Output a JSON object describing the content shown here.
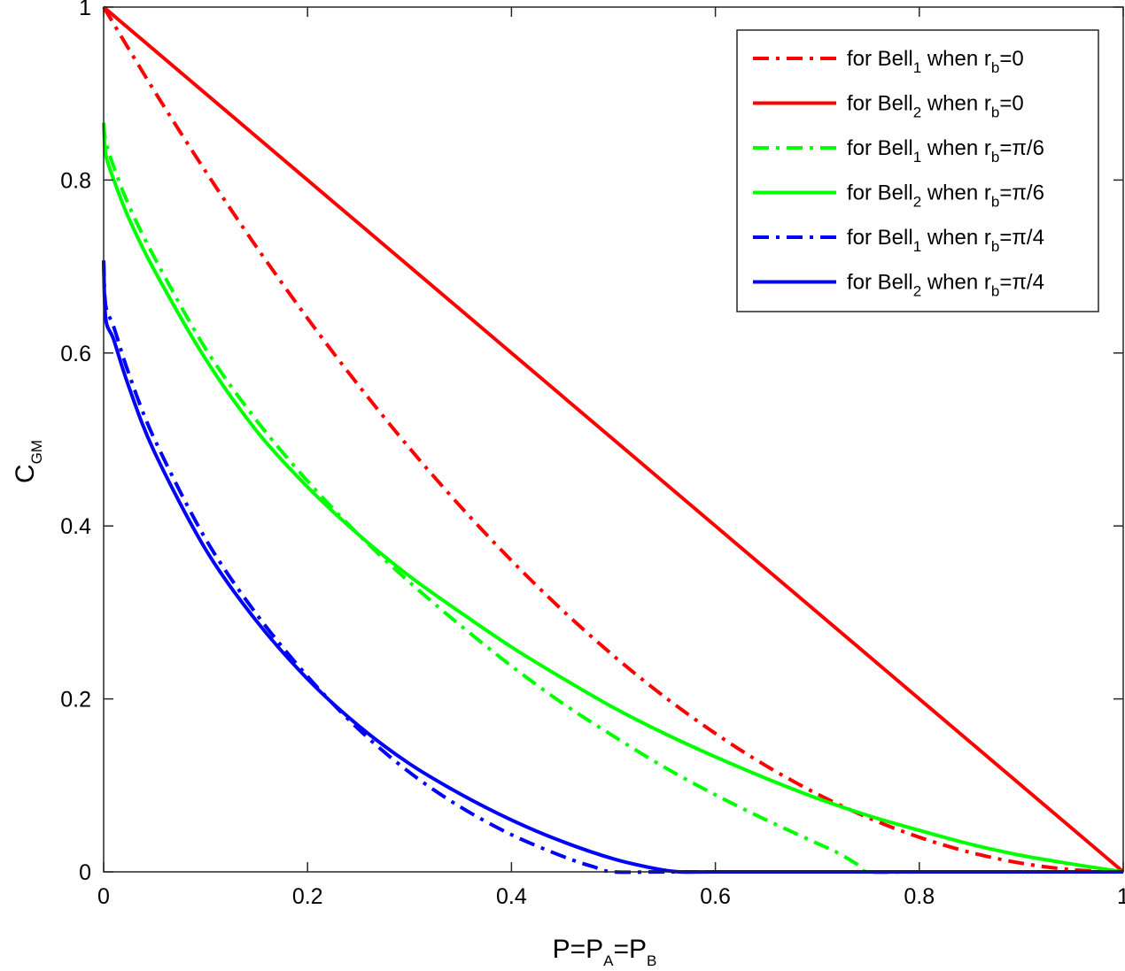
{
  "chart_data": {
    "type": "line",
    "xlabel": "P=P_A=P_B",
    "xlabel_parts": {
      "main": "P=P",
      "sub1": "A",
      "mid": "=P",
      "sub2": "B"
    },
    "ylabel": "C_GM",
    "ylabel_parts": {
      "main": "C",
      "sub": "GM"
    },
    "xlim": [
      0,
      1
    ],
    "ylim": [
      0,
      1
    ],
    "xticks": [
      0,
      0.2,
      0.4,
      0.6,
      0.8,
      1
    ],
    "xtick_labels": [
      "0",
      "0.2",
      "0.4",
      "0.6",
      "0.8",
      "1"
    ],
    "yticks": [
      0,
      0.2,
      0.4,
      0.6,
      0.8,
      1
    ],
    "ytick_labels": [
      "0",
      "0.2",
      "0.4",
      "0.6",
      "0.8",
      "1"
    ],
    "grid": false,
    "legend_position": "top-right",
    "series": [
      {
        "name": "for Bell_1 when r_b=0",
        "label": {
          "pre": "for Bell",
          "sub1": "1",
          "mid": " when r",
          "sub2": "b",
          "post": "=0"
        },
        "color": "#ff0000",
        "style": "dashdot",
        "x": [
          0,
          0.05,
          0.1,
          0.15,
          0.2,
          0.25,
          0.3,
          0.35,
          0.4,
          0.45,
          0.5,
          0.55,
          0.6,
          0.65,
          0.7,
          0.75,
          0.8,
          0.85,
          0.9,
          0.95,
          1.0
        ],
        "y": [
          1,
          0.9025,
          0.81,
          0.7225,
          0.64,
          0.5625,
          0.49,
          0.4225,
          0.36,
          0.3025,
          0.25,
          0.2025,
          0.16,
          0.1225,
          0.09,
          0.0625,
          0.04,
          0.0225,
          0.01,
          0.0025,
          0
        ]
      },
      {
        "name": "for Bell_2 when r_b=0",
        "label": {
          "pre": "for Bell",
          "sub1": "2",
          "mid": " when r",
          "sub2": "b",
          "post": "=0"
        },
        "color": "#ff0000",
        "style": "solid",
        "x": [
          0,
          1
        ],
        "y": [
          1,
          0
        ]
      },
      {
        "name": "for Bell_1 when r_b=π/6",
        "label": {
          "pre": "for Bell",
          "sub1": "1",
          "mid": " when r",
          "sub2": "b",
          "post": "=π/6"
        },
        "color": "#00ff00",
        "style": "dashdot",
        "x": [
          0,
          0.002,
          0.01,
          0.025,
          0.05,
          0.1,
          0.15,
          0.2,
          0.25,
          0.3,
          0.35,
          0.4,
          0.45,
          0.5,
          0.55,
          0.6,
          0.65,
          0.7,
          0.72,
          0.74,
          0.75,
          0.8,
          0.9,
          1.0
        ],
        "y": [
          0.866,
          0.845,
          0.815,
          0.77,
          0.71,
          0.605,
          0.522,
          0.452,
          0.39,
          0.335,
          0.285,
          0.238,
          0.195,
          0.157,
          0.121,
          0.089,
          0.06,
          0.033,
          0.022,
          0.008,
          0,
          0,
          0,
          0
        ]
      },
      {
        "name": "for Bell_2 when r_b=π/6",
        "label": {
          "pre": "for Bell",
          "sub1": "2",
          "mid": " when r",
          "sub2": "b",
          "post": "=π/6"
        },
        "color": "#00ff00",
        "style": "solid",
        "x": [
          0,
          0.002,
          0.01,
          0.025,
          0.05,
          0.1,
          0.15,
          0.2,
          0.25,
          0.3,
          0.35,
          0.4,
          0.45,
          0.5,
          0.55,
          0.6,
          0.65,
          0.7,
          0.75,
          0.8,
          0.85,
          0.9,
          0.95,
          1.0
        ],
        "y": [
          0.866,
          0.83,
          0.8,
          0.755,
          0.695,
          0.593,
          0.51,
          0.445,
          0.39,
          0.342,
          0.3,
          0.26,
          0.224,
          0.19,
          0.16,
          0.133,
          0.108,
          0.085,
          0.065,
          0.048,
          0.032,
          0.019,
          0.009,
          0
        ]
      },
      {
        "name": "for Bell_1 when r_b=π/4",
        "label": {
          "pre": "for Bell",
          "sub1": "1",
          "mid": " when r",
          "sub2": "b",
          "post": "=π/4"
        },
        "color": "#0000ff",
        "style": "dashdot",
        "x": [
          0,
          0.002,
          0.01,
          0.025,
          0.05,
          0.1,
          0.15,
          0.2,
          0.25,
          0.3,
          0.35,
          0.4,
          0.45,
          0.48,
          0.5,
          0.55,
          0.6,
          0.7,
          0.8,
          0.9,
          1.0
        ],
        "y": [
          0.707,
          0.655,
          0.63,
          0.575,
          0.5,
          0.385,
          0.298,
          0.226,
          0.165,
          0.115,
          0.075,
          0.043,
          0.018,
          0.006,
          0,
          0,
          0,
          0,
          0,
          0,
          0
        ]
      },
      {
        "name": "for Bell_2 when r_b=π/4",
        "label": {
          "pre": "for Bell",
          "sub1": "2",
          "mid": " when r",
          "sub2": "b",
          "post": "=π/4"
        },
        "color": "#0000ff",
        "style": "solid",
        "x": [
          0,
          0.002,
          0.01,
          0.025,
          0.05,
          0.1,
          0.15,
          0.2,
          0.25,
          0.3,
          0.35,
          0.4,
          0.45,
          0.5,
          0.54,
          0.565,
          0.6,
          0.7,
          0.8,
          0.9,
          1.0
        ],
        "y": [
          0.707,
          0.64,
          0.615,
          0.56,
          0.485,
          0.373,
          0.29,
          0.223,
          0.169,
          0.125,
          0.09,
          0.06,
          0.035,
          0.015,
          0.004,
          0,
          0,
          0,
          0,
          0,
          0
        ]
      }
    ]
  }
}
